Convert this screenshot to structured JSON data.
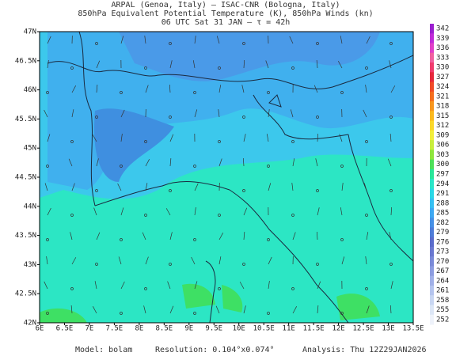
{
  "header": {
    "line1": "ARPAL (Genoa, Italy)  –  ISAC-CNR (Bologna, Italy)",
    "line2": "850hPa Equivalent Potential Temperature (K), 850hPa Winds (kn)",
    "line3": "06 UTC Sat 31 JAN  –  τ = 42h"
  },
  "map": {
    "lat_labels": [
      "47N",
      "46.5N",
      "46N",
      "45.5N",
      "45N",
      "44.5N",
      "44N",
      "43.5N",
      "43N",
      "42.5N",
      "42N"
    ],
    "lon_labels": [
      "6E",
      "6.5E",
      "7E",
      "7.5E",
      "8E",
      "8.5E",
      "9E",
      "9.5E",
      "10E",
      "10.5E",
      "11E",
      "11.5E",
      "12E",
      "12.5E",
      "13E",
      "13.5E"
    ]
  },
  "colorbar": {
    "labels": [
      342,
      339,
      336,
      333,
      330,
      327,
      324,
      321,
      318,
      315,
      312,
      309,
      306,
      303,
      300,
      297,
      294,
      291,
      288,
      285,
      282,
      279,
      276,
      273,
      270,
      267,
      264,
      261,
      258,
      255,
      252
    ],
    "colors": [
      "#9b1fd0",
      "#c02bd8",
      "#e040c8",
      "#f060a0",
      "#f03c6e",
      "#e6283c",
      "#f04a28",
      "#f56e1e",
      "#f8961e",
      "#fbb91e",
      "#fbd82a",
      "#f2ee3c",
      "#c8ee3c",
      "#8ee63c",
      "#4ee05a",
      "#2ae69a",
      "#2ae6c8",
      "#2ad8e6",
      "#36c0f2",
      "#3ea8f2",
      "#4690e6",
      "#4e7cd8",
      "#5a6ccc",
      "#6a78d0",
      "#7a8ad8",
      "#8c9ce0",
      "#a0b0e8",
      "#b4c4ee",
      "#c8d6f2",
      "#dce6f6",
      "#eef2fa"
    ]
  },
  "footer": {
    "model": "Model: bolam",
    "resolution": "Resolution: 0.104°x0.074°",
    "analysis": "Analysis: Thu 12Z29JAN2026"
  }
}
